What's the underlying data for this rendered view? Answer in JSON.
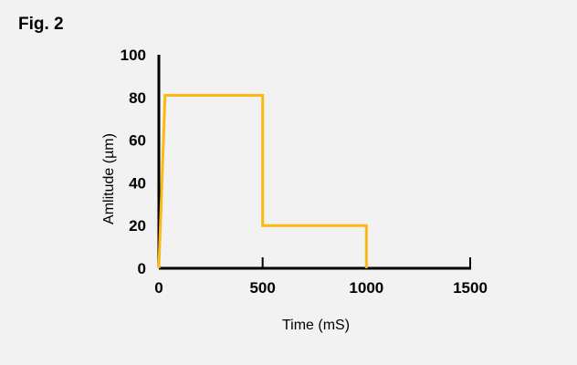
{
  "figure_label": "Fig. 2",
  "colors": {
    "background": "#f2f2f2",
    "axis": "#000000",
    "series": "#fdb813"
  },
  "chart_data": {
    "type": "line",
    "title": "",
    "xlabel": "Time (mS)",
    "ylabel": "Amlitude (µm)",
    "xlim": [
      0,
      1500
    ],
    "ylim": [
      0,
      100
    ],
    "xticks": [
      0,
      500,
      1000,
      1500
    ],
    "yticks": [
      0,
      20,
      40,
      60,
      80,
      100
    ],
    "grid": false,
    "series": [
      {
        "x": [
          0,
          30,
          500,
          500,
          1000,
          1000
        ],
        "y": [
          0,
          81,
          81,
          20,
          20,
          0
        ]
      }
    ]
  }
}
